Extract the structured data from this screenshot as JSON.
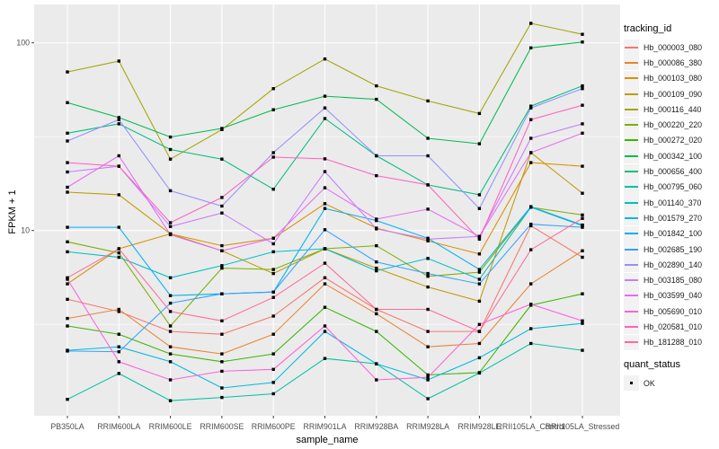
{
  "chart_data": {
    "type": "line",
    "xlabel": "sample_name",
    "ylabel": "FPKM + 1",
    "y_scale": "log10",
    "ylim": [
      1.0,
      160
    ],
    "y_ticks": [
      100,
      10
    ],
    "y_tick_labels": [
      "100",
      "10"
    ],
    "y_minor": [
      31.623,
      3.1623
    ],
    "grid": "on",
    "panel_bg": "#EBEBEB",
    "grid_color": "#FFFFFF",
    "point_color": "#000000",
    "tick_label_color": "#4D4D4D",
    "categories": [
      "PB350LA",
      "RRIM600LA",
      "RRIM600LE",
      "RRIM600SE",
      "RRIM600PE",
      "RRIM901LA",
      "RRIM928BA",
      "RRIM928LA",
      "RRIM928LE",
      "RRII105LA_Control",
      "RRII105LA_Stressed"
    ],
    "legend": {
      "title": "tracking_id",
      "position": "right"
    },
    "legend2": {
      "title": "quant_status",
      "items": [
        {
          "label": "OK",
          "marker": "black-square"
        }
      ]
    },
    "series": [
      {
        "name": "Hb_000003_080",
        "color": "#F8766D",
        "values": [
          4.3,
          3.7,
          2.9,
          2.8,
          3.5,
          5.6,
          3.8,
          2.9,
          2.9,
          10.6,
          7.2
        ]
      },
      {
        "name": "Hb_000086_380",
        "color": "#EA8331",
        "values": [
          3.4,
          3.8,
          2.4,
          2.2,
          2.8,
          5.2,
          3.6,
          2.4,
          2.5,
          5.2,
          7.8
        ]
      },
      {
        "name": "Hb_000103_080",
        "color": "#D89000",
        "values": [
          5.2,
          8.0,
          9.6,
          8.3,
          9.1,
          13.9,
          10.3,
          8.8,
          7.5,
          23,
          22
        ]
      },
      {
        "name": "Hb_000109_090",
        "color": "#C09B00",
        "values": [
          16,
          15.5,
          9.6,
          7.8,
          5.9,
          8.0,
          6.3,
          5.0,
          4.2,
          26,
          15.8
        ]
      },
      {
        "name": "Hb_000116_440",
        "color": "#A3A500",
        "values": [
          70,
          80,
          24,
          34.5,
          57,
          82,
          59,
          49,
          42,
          127,
          111
        ]
      },
      {
        "name": "Hb_000220_220",
        "color": "#7CAE00",
        "values": [
          8.7,
          7.6,
          3.1,
          6.3,
          6.2,
          8.0,
          8.3,
          5.7,
          6.0,
          13.3,
          12.1
        ]
      },
      {
        "name": "Hb_000272_020",
        "color": "#39B600",
        "values": [
          3.1,
          2.8,
          2.2,
          2.0,
          2.2,
          3.9,
          2.9,
          1.7,
          1.75,
          4.0,
          4.6
        ]
      },
      {
        "name": "Hb_000342_100",
        "color": "#00BB4E",
        "values": [
          48,
          40,
          31.5,
          35,
          44,
          52,
          50,
          31,
          29,
          94,
          101
        ]
      },
      {
        "name": "Hb_000656_400",
        "color": "#00BF7D",
        "values": [
          33,
          37,
          27,
          24,
          16.6,
          39.5,
          25,
          17.5,
          15.5,
          46,
          59
        ]
      },
      {
        "name": "Hb_000795_060",
        "color": "#00C1A3",
        "values": [
          1.26,
          1.73,
          1.24,
          1.29,
          1.35,
          2.08,
          1.95,
          1.27,
          1.74,
          2.5,
          2.3
        ]
      },
      {
        "name": "Hb_001140_370",
        "color": "#00BFC4",
        "values": [
          7.7,
          7.2,
          5.6,
          6.5,
          7.7,
          8.0,
          6.1,
          7.1,
          5.5,
          13.3,
          10.6
        ]
      },
      {
        "name": "Hb_001579_270",
        "color": "#00BAE0",
        "values": [
          2.3,
          2.4,
          2.0,
          1.45,
          1.55,
          2.9,
          1.95,
          1.6,
          2.1,
          3.0,
          3.2
        ]
      },
      {
        "name": "Hb_001842_100",
        "color": "#00B0F6",
        "values": [
          10.4,
          10.4,
          4.5,
          4.6,
          4.7,
          13.1,
          11.3,
          9.1,
          6.2,
          13.4,
          10.7
        ]
      },
      {
        "name": "Hb_002685_190",
        "color": "#35A2FF",
        "values": [
          2.28,
          2.26,
          4.1,
          4.6,
          4.7,
          10.1,
          6.8,
          5.9,
          5.2,
          10.8,
          10.4
        ]
      },
      {
        "name": "Hb_002890_140",
        "color": "#9590FF",
        "values": [
          30,
          39,
          16.3,
          13.5,
          26,
          45,
          25,
          25,
          13.1,
          45,
          57
        ]
      },
      {
        "name": "Hb_003185_080",
        "color": "#C77CFF",
        "values": [
          20.5,
          22,
          10.5,
          12.4,
          8.5,
          20.6,
          10.2,
          9.0,
          9.3,
          31,
          37
        ]
      },
      {
        "name": "Hb_003599_040",
        "color": "#E76BF3",
        "values": [
          17,
          25,
          9.5,
          7.8,
          9.1,
          16.9,
          11.5,
          13,
          9.3,
          26,
          33
        ]
      },
      {
        "name": "Hb_005690_010",
        "color": "#FA62DB",
        "values": [
          5.5,
          2.0,
          1.6,
          1.78,
          1.82,
          3.1,
          1.6,
          1.65,
          3.16,
          4.05,
          3.3
        ]
      },
      {
        "name": "Hb_020581_010",
        "color": "#FF62BC",
        "values": [
          23,
          22,
          11,
          15,
          24.6,
          24.1,
          19.6,
          17.5,
          9.0,
          39,
          46.5
        ]
      },
      {
        "name": "Hb_181288_010",
        "color": "#FF6A98",
        "values": [
          5.6,
          8.0,
          3.7,
          3.3,
          4.4,
          6.7,
          3.8,
          3.8,
          2.9,
          7.9,
          11.6
        ]
      }
    ]
  }
}
